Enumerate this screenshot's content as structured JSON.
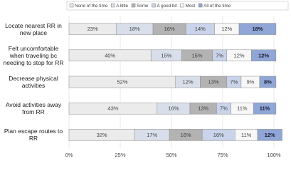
{
  "chart_data": {
    "type": "stacked-bar-horizontal",
    "categories": [
      "Locate nearest RR in new place",
      "Felt uncomfortable when traveling bc needing to stop for RR",
      "Decrease physical activities",
      "Avoid activities away from RR",
      "Plan escape routes to RR"
    ],
    "series": [
      {
        "name": "None of the time",
        "color": "#ebebeb",
        "values": [
          23,
          40,
          52,
          43,
          32
        ],
        "value_labels": [
          "23%",
          "40%",
          "52%",
          "43%",
          "32%"
        ]
      },
      {
        "name": "A little",
        "color": "#d9dfea",
        "values": [
          18,
          15,
          12,
          16,
          17
        ],
        "value_labels": [
          "18%",
          "15%",
          "12%",
          "16%",
          "17%"
        ]
      },
      {
        "name": "Some",
        "color": "#b3b3b3",
        "values": [
          16,
          15,
          13,
          13,
          16
        ],
        "value_labels": [
          "16%",
          "15%",
          "13%",
          "13%",
          "16%"
        ]
      },
      {
        "name": "A good bit",
        "color": "#c9d3ea",
        "values": [
          14,
          7,
          7,
          7,
          16
        ],
        "value_labels": [
          "14%",
          "7%",
          "7%",
          "7%",
          "16%"
        ]
      },
      {
        "name": "Most",
        "color": "#f7f7f7",
        "values": [
          12,
          12,
          9,
          11,
          11
        ],
        "value_labels": [
          "12%",
          "12%",
          "9%",
          "11%",
          "11%"
        ]
      },
      {
        "name": "All of the time",
        "color": "#8fa6d6",
        "values": [
          18,
          12,
          8,
          11,
          12
        ],
        "value_labels": [
          "18%",
          "12%",
          "8%",
          "11%",
          "12%"
        ]
      }
    ],
    "xlim": [
      0,
      100
    ],
    "xticks": [
      {
        "value": 0,
        "label": "0%"
      },
      {
        "value": 25,
        "label": "25%"
      },
      {
        "value": 50,
        "label": "50%"
      },
      {
        "value": 75,
        "label": "75%"
      },
      {
        "value": 100,
        "label": "100%"
      }
    ],
    "grid": true,
    "legend": "top"
  }
}
